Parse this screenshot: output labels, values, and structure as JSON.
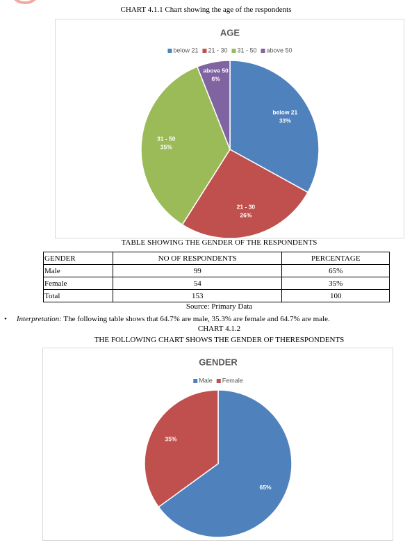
{
  "caption_1": "CHART 4.1.1 Chart showing the age of the respondents",
  "table_title": "TABLE SHOWING THE GENDER OF THE RESPONDENTS",
  "table": {
    "header": [
      "GENDER",
      "NO OF RESPONDENTS",
      "PERCENTAGE"
    ],
    "rows": [
      [
        "Male",
        "99",
        "65%"
      ],
      [
        "Female",
        "54",
        "35%"
      ],
      [
        "Total",
        "153",
        "100"
      ]
    ]
  },
  "source": "Source: Primary Data",
  "interpretation": {
    "label": "Interpretation:",
    "text": "The following table shows that 64.7% are male, 35.3% are female and 64.7% are male."
  },
  "caption_2": "CHART 4.1.2",
  "caption_3": "THE FOLLOWING CHART SHOWS THE GENDER OF THERESPONDENTS",
  "chart_data": [
    {
      "type": "pie",
      "title": "AGE",
      "categories": [
        "below 21",
        "21 - 30",
        "31 - 50",
        "above 50"
      ],
      "values": [
        33,
        26,
        35,
        6
      ],
      "value_labels": [
        "33%",
        "26%",
        "35%",
        "6%"
      ],
      "colors": [
        "#4f81bd",
        "#c0504d",
        "#9bbb59",
        "#8064a2"
      ],
      "legend": "top",
      "data_labels": "category_and_value"
    },
    {
      "type": "pie",
      "title": "GENDER",
      "categories": [
        "Male",
        "Female"
      ],
      "values": [
        65,
        35
      ],
      "value_labels": [
        "65%",
        "35%"
      ],
      "colors": [
        "#4f81bd",
        "#c0504d"
      ],
      "legend": "top",
      "data_labels": "value"
    }
  ]
}
